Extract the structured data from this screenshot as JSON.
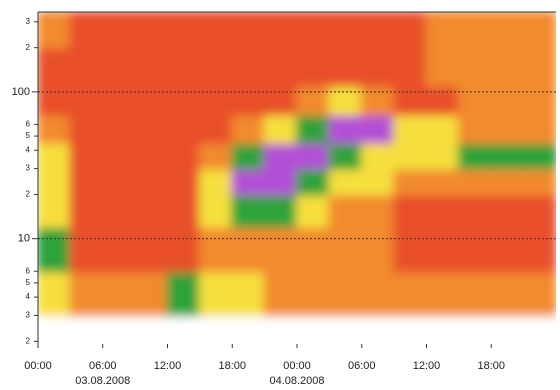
{
  "chart_data": {
    "type": "heatmap",
    "log_y": true,
    "xlim": [
      0,
      48
    ],
    "ylim": [
      1.8,
      350
    ],
    "xticks": [
      {
        "value": 0,
        "label": "00:00"
      },
      {
        "value": 6,
        "label": "06:00"
      },
      {
        "value": 12,
        "label": "12:00"
      },
      {
        "value": 18,
        "label": "18:00"
      },
      {
        "value": 24,
        "label": "00:00"
      },
      {
        "value": 30,
        "label": "06:00"
      },
      {
        "value": 36,
        "label": "12:00"
      },
      {
        "value": 42,
        "label": "18:00"
      }
    ],
    "x_date_labels": [
      {
        "value": 6,
        "label": "03.08.2008"
      },
      {
        "value": 24,
        "label": "04.08.2008"
      }
    ],
    "yticks": [
      {
        "value": 300,
        "label": "3"
      },
      {
        "value": 200,
        "label": "2"
      },
      100,
      {
        "value": 60,
        "label": "6"
      },
      {
        "value": 50,
        "label": "5"
      },
      {
        "value": 40,
        "label": "4"
      },
      {
        "value": 30,
        "label": "3"
      },
      {
        "value": 20,
        "label": "2"
      },
      10,
      6,
      5,
      4,
      3,
      2
    ],
    "colorscale": [
      "#ffffff",
      "#e8502a",
      "#f28a2e",
      "#f6df3e",
      "#2fa23a",
      "#b24fd6"
    ],
    "x_edges": [
      0,
      3,
      6,
      9,
      12,
      15,
      18,
      21,
      24,
      27,
      30,
      33,
      36,
      39,
      42,
      45,
      48
    ],
    "y_edges": [
      1.8,
      3,
      6,
      12,
      20,
      30,
      45,
      70,
      110,
      200,
      350
    ],
    "z": [
      [
        0,
        0,
        0,
        0,
        0,
        0,
        0,
        0,
        0,
        0,
        0,
        0,
        0,
        0,
        0,
        0
      ],
      [
        3,
        2,
        2,
        2,
        4,
        3,
        3,
        2,
        2,
        2,
        2,
        2,
        2,
        2,
        2,
        2
      ],
      [
        4,
        1,
        1,
        1,
        1,
        2,
        2,
        2,
        2,
        2,
        2,
        1,
        1,
        1,
        1,
        1
      ],
      [
        3,
        1,
        1,
        1,
        1,
        3,
        4,
        4,
        3,
        2,
        2,
        1,
        1,
        1,
        1,
        1
      ],
      [
        3,
        1,
        1,
        1,
        1,
        3,
        5,
        5,
        4,
        3,
        3,
        2,
        2,
        2,
        2,
        2
      ],
      [
        3,
        1,
        1,
        1,
        1,
        2,
        4,
        5,
        5,
        4,
        3,
        3,
        3,
        4,
        4,
        4
      ],
      [
        2,
        1,
        1,
        1,
        1,
        1,
        2,
        3,
        4,
        5,
        5,
        3,
        3,
        2,
        2,
        2
      ],
      [
        1,
        1,
        1,
        1,
        1,
        1,
        1,
        1,
        2,
        3,
        2,
        1,
        1,
        2,
        2,
        2
      ],
      [
        1,
        1,
        1,
        1,
        1,
        1,
        1,
        1,
        1,
        1,
        1,
        1,
        2,
        2,
        2,
        2
      ],
      [
        2,
        1,
        1,
        1,
        1,
        1,
        1,
        1,
        1,
        1,
        1,
        1,
        2,
        2,
        2,
        2
      ]
    ]
  }
}
